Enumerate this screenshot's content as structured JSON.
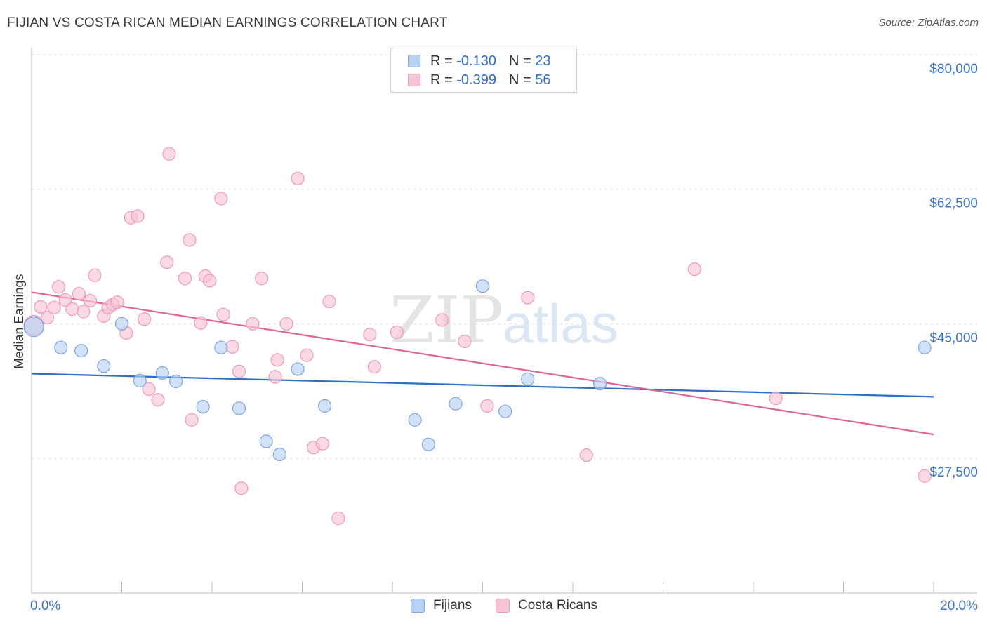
{
  "title": "FIJIAN VS COSTA RICAN MEDIAN EARNINGS CORRELATION CHART",
  "source": "Source: ZipAtlas.com",
  "watermark": {
    "zip": "ZIP",
    "atlas": "atlas"
  },
  "colors": {
    "fijians_fill": "#b9d1f3",
    "fijians_stroke": "#7ea6df",
    "fijians_line": "#2f6fc7",
    "costa_fill": "#f8c5d6",
    "costa_stroke": "#ec9ab6",
    "costa_line": "#e26591",
    "tick_text": "#3b73c4",
    "grid": "#dcdcdc"
  },
  "legend": {
    "rows": [
      {
        "r_label": "R =",
        "r_value": "-0.130",
        "n_label": "N =",
        "n_value": "23"
      },
      {
        "r_label": "R =",
        "r_value": "-0.399",
        "n_label": "N =",
        "n_value": "56"
      }
    ]
  },
  "bottom_legend": {
    "fijians": "Fijians",
    "costa_ricans": "Costa Ricans"
  },
  "chart_data": {
    "type": "scatter",
    "title": "FIJIAN VS COSTA RICAN MEDIAN EARNINGS CORRELATION CHART",
    "xlabel": "",
    "ylabel": "Median Earnings",
    "xlim": [
      0,
      20
    ],
    "ylim": [
      10000,
      82000
    ],
    "x_tick_labels": [
      "0.0%",
      "20.0%"
    ],
    "y_ticks": [
      27500,
      45000,
      62500,
      80000
    ],
    "y_tick_labels": [
      "$27,500",
      "$45,000",
      "$62,500",
      "$80,000"
    ],
    "grid": true,
    "series": [
      {
        "name": "Fijians",
        "R": -0.13,
        "N": 23,
        "trend": {
          "x": [
            0,
            20
          ],
          "y": [
            38500,
            35500
          ]
        },
        "points": [
          {
            "x": 0.05,
            "y": 44600
          },
          {
            "x": 0.65,
            "y": 41900
          },
          {
            "x": 1.1,
            "y": 41500
          },
          {
            "x": 1.6,
            "y": 39500
          },
          {
            "x": 2.0,
            "y": 45000
          },
          {
            "x": 2.4,
            "y": 37600
          },
          {
            "x": 2.9,
            "y": 38600
          },
          {
            "x": 3.2,
            "y": 37500
          },
          {
            "x": 3.8,
            "y": 34200
          },
          {
            "x": 4.2,
            "y": 41900
          },
          {
            "x": 4.6,
            "y": 34000
          },
          {
            "x": 5.2,
            "y": 29700
          },
          {
            "x": 5.5,
            "y": 28000
          },
          {
            "x": 5.9,
            "y": 39100
          },
          {
            "x": 6.5,
            "y": 34300
          },
          {
            "x": 8.5,
            "y": 32500
          },
          {
            "x": 8.8,
            "y": 29300
          },
          {
            "x": 9.4,
            "y": 34600
          },
          {
            "x": 10.0,
            "y": 49900
          },
          {
            "x": 10.5,
            "y": 33600
          },
          {
            "x": 11.0,
            "y": 37800
          },
          {
            "x": 12.6,
            "y": 37200
          },
          {
            "x": 19.8,
            "y": 41900
          }
        ]
      },
      {
        "name": "Costa Ricans",
        "R": -0.399,
        "N": 56,
        "trend": {
          "x": [
            0,
            20
          ],
          "y": [
            49100,
            30600
          ]
        },
        "points": [
          {
            "x": 0.05,
            "y": 44800
          },
          {
            "x": 0.2,
            "y": 47200
          },
          {
            "x": 0.35,
            "y": 45800
          },
          {
            "x": 0.5,
            "y": 47100
          },
          {
            "x": 0.6,
            "y": 49800
          },
          {
            "x": 0.75,
            "y": 48100
          },
          {
            "x": 0.9,
            "y": 46900
          },
          {
            "x": 1.05,
            "y": 48900
          },
          {
            "x": 1.15,
            "y": 46600
          },
          {
            "x": 1.3,
            "y": 48000
          },
          {
            "x": 1.4,
            "y": 51300
          },
          {
            "x": 1.6,
            "y": 46000
          },
          {
            "x": 1.7,
            "y": 47100
          },
          {
            "x": 1.8,
            "y": 47500
          },
          {
            "x": 1.9,
            "y": 47800
          },
          {
            "x": 2.1,
            "y": 43800
          },
          {
            "x": 2.2,
            "y": 58800
          },
          {
            "x": 2.35,
            "y": 59000
          },
          {
            "x": 2.5,
            "y": 45600
          },
          {
            "x": 2.6,
            "y": 36500
          },
          {
            "x": 2.8,
            "y": 35100
          },
          {
            "x": 3.0,
            "y": 53000
          },
          {
            "x": 3.05,
            "y": 67100
          },
          {
            "x": 3.4,
            "y": 50900
          },
          {
            "x": 3.5,
            "y": 55900
          },
          {
            "x": 3.55,
            "y": 32500
          },
          {
            "x": 3.75,
            "y": 45100
          },
          {
            "x": 3.85,
            "y": 51200
          },
          {
            "x": 3.95,
            "y": 50600
          },
          {
            "x": 4.2,
            "y": 61300
          },
          {
            "x": 4.25,
            "y": 46200
          },
          {
            "x": 4.45,
            "y": 42000
          },
          {
            "x": 4.6,
            "y": 38800
          },
          {
            "x": 4.65,
            "y": 23600
          },
          {
            "x": 4.9,
            "y": 45000
          },
          {
            "x": 5.1,
            "y": 50900
          },
          {
            "x": 5.4,
            "y": 38100
          },
          {
            "x": 5.45,
            "y": 40300
          },
          {
            "x": 5.65,
            "y": 45000
          },
          {
            "x": 5.9,
            "y": 63900
          },
          {
            "x": 6.1,
            "y": 40900
          },
          {
            "x": 6.25,
            "y": 28900
          },
          {
            "x": 6.45,
            "y": 29400
          },
          {
            "x": 6.6,
            "y": 47900
          },
          {
            "x": 6.8,
            "y": 19700
          },
          {
            "x": 7.5,
            "y": 43600
          },
          {
            "x": 7.6,
            "y": 39400
          },
          {
            "x": 8.1,
            "y": 43900
          },
          {
            "x": 9.1,
            "y": 45500
          },
          {
            "x": 9.6,
            "y": 42700
          },
          {
            "x": 10.1,
            "y": 34300
          },
          {
            "x": 11.0,
            "y": 48400
          },
          {
            "x": 12.3,
            "y": 27900
          },
          {
            "x": 14.7,
            "y": 52100
          },
          {
            "x": 16.5,
            "y": 35300
          },
          {
            "x": 19.8,
            "y": 25200
          }
        ]
      }
    ]
  }
}
